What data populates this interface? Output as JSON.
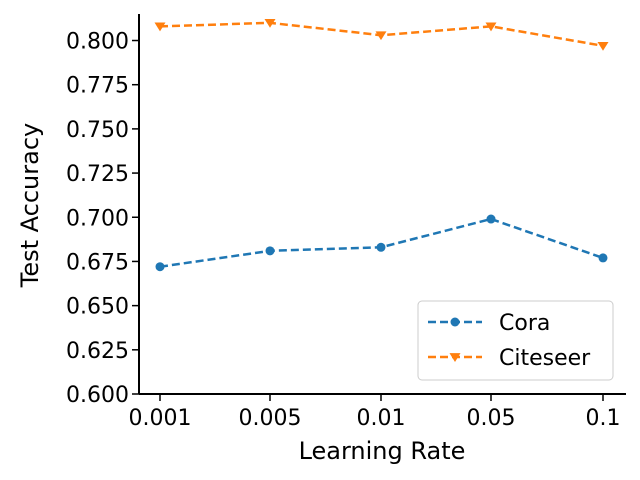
{
  "chart_data": {
    "type": "line",
    "title": "",
    "xlabel": "Learning Rate",
    "ylabel": "Test Accuracy",
    "categories": [
      "0.001",
      "0.005",
      "0.01",
      "0.05",
      "0.1"
    ],
    "ylim": [
      0.6,
      0.815
    ],
    "yticks": [
      "0.600",
      "0.625",
      "0.650",
      "0.675",
      "0.700",
      "0.725",
      "0.750",
      "0.775",
      "0.800"
    ],
    "grid": false,
    "legend_position": "lower-right",
    "series": [
      {
        "name": "Cora",
        "values": [
          0.672,
          0.681,
          0.683,
          0.699,
          0.677
        ],
        "color": "#1f77b4",
        "marker": "circle",
        "linestyle": "dashed"
      },
      {
        "name": "Citeseer",
        "values": [
          0.808,
          0.81,
          0.803,
          0.808,
          0.797
        ],
        "color": "#ff7f0e",
        "marker": "triangle-down",
        "linestyle": "dashed"
      }
    ]
  }
}
